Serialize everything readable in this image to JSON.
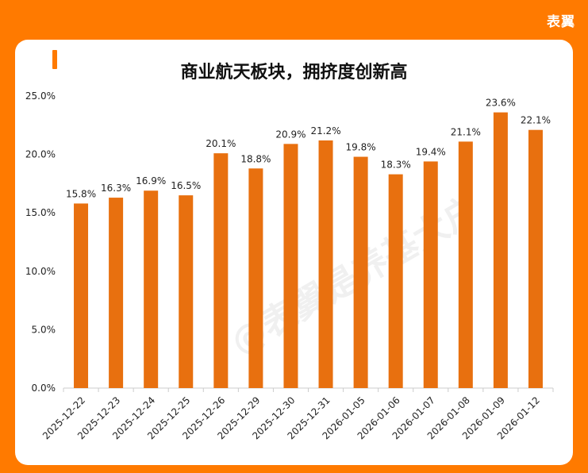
{
  "brand": "表翼",
  "chart_data": {
    "type": "bar",
    "title": "商业航天板块，拥挤度创新高",
    "categories": [
      "2025-12-22",
      "2025-12-23",
      "2025-12-24",
      "2025-12-25",
      "2025-12-26",
      "2025-12-29",
      "2025-12-30",
      "2025-12-31",
      "2026-01-05",
      "2026-01-06",
      "2026-01-07",
      "2026-01-08",
      "2026-01-09",
      "2026-01-12"
    ],
    "values": [
      15.8,
      16.3,
      16.9,
      16.5,
      20.1,
      18.8,
      20.9,
      21.2,
      19.8,
      18.3,
      19.4,
      21.1,
      23.6,
      22.1
    ],
    "data_labels": [
      "15.8%",
      "16.3%",
      "16.9%",
      "16.5%",
      "20.1%",
      "18.8%",
      "20.9%",
      "21.2%",
      "19.8%",
      "18.3%",
      "19.4%",
      "21.1%",
      "23.6%",
      "22.1%"
    ],
    "yticks": [
      0,
      5,
      10,
      15,
      20,
      25
    ],
    "ytick_labels": [
      "0.0%",
      "5.0%",
      "10.0%",
      "15.0%",
      "20.0%",
      "25.0%"
    ],
    "ylim": [
      0,
      25
    ],
    "xlabel": "",
    "ylabel": "",
    "grid": false,
    "bar_color": "#e8700f"
  },
  "watermark": "@表翼是养基大户",
  "colors": {
    "background": "#ff7a00",
    "card": "#ffffff",
    "bar": "#e8700f"
  }
}
